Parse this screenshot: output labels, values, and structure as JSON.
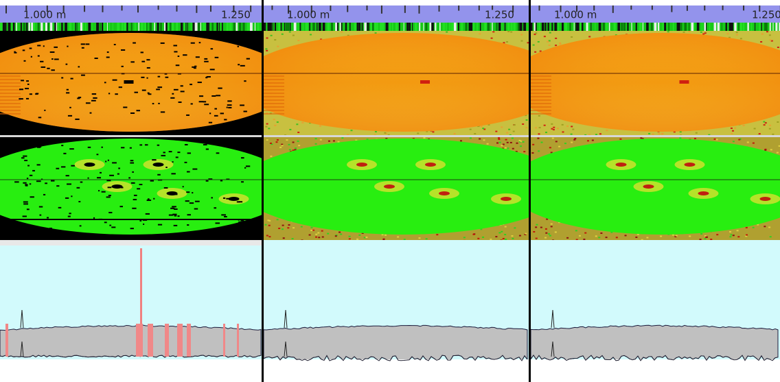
{
  "panels": [
    {
      "scale_start": "1.000 m",
      "scale_end": "1.250"
    },
    {
      "scale_start": "1.000 m",
      "scale_end": "1.250"
    },
    {
      "scale_start": "1.000 m",
      "scale_end": "1.250"
    }
  ]
}
